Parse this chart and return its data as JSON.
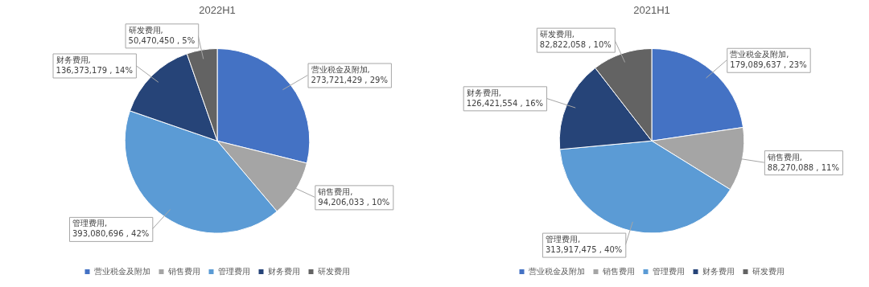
{
  "chart_data": [
    {
      "type": "pie",
      "title": "2022H1",
      "categories": [
        "营业税金及附加",
        "销售费用",
        "管理费用",
        "财务费用",
        "研发费用"
      ],
      "values": [
        273721429,
        94206033,
        393080696,
        136373179,
        50470450
      ],
      "colors": [
        "#4472c4",
        "#a5a5a5",
        "#5b9bd5",
        "#264478",
        "#636363"
      ],
      "value_labels": [
        "营业税金及附加, 273,721,429 , 29%",
        "销售费用, 94,206,033 , 10%",
        "管理费用, 393,080,696 , 42%",
        "财务费用, 136,373,179 , 14%",
        "研发费用, 50,470,450 , 5%"
      ],
      "legend": "bottom"
    },
    {
      "type": "pie",
      "title": "2021H1",
      "categories": [
        "营业税金及附加",
        "销售费用",
        "管理费用",
        "财务费用",
        "研发费用"
      ],
      "values": [
        179089637,
        88270088,
        313917475,
        126421554,
        82822058
      ],
      "colors": [
        "#4472c4",
        "#a5a5a5",
        "#5b9bd5",
        "#264478",
        "#636363"
      ],
      "value_labels": [
        "营业税金及附加, 179,089,637 , 23%",
        "销售费用, 88,270,088 , 11%",
        "管理费用, 313,917,475 , 40%",
        "财务费用, 126,421,554 , 16%",
        "研发费用, 82,822,058 , 10%"
      ],
      "legend": "bottom"
    }
  ]
}
